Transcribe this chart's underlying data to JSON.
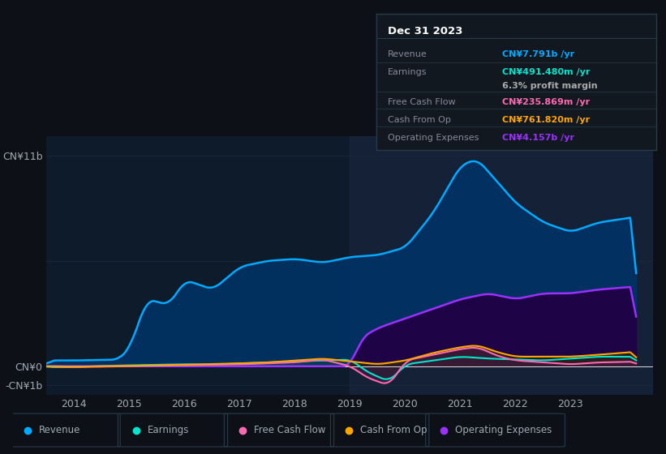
{
  "bg_color": "#0d1117",
  "plot_bg_color": "#0d1b2a",
  "grid_color": "#1e2d3d",
  "text_color": "#a0aab4",
  "title_color": "#ffffff",
  "y_label_top": "CN¥11b",
  "y_label_zero": "CN¥0",
  "y_label_neg": "-CN¥1b",
  "ylim_min": -1500000000.0,
  "ylim_max": 12000000000.0,
  "x_ticks": [
    2014,
    2015,
    2016,
    2017,
    2018,
    2019,
    2020,
    2021,
    2022,
    2023
  ],
  "revenue_color": "#00aaff",
  "earnings_color": "#00e5cc",
  "fcf_color": "#ff69b4",
  "cashfromop_color": "#ffa500",
  "opex_color": "#9b30ff",
  "tooltip_bg": "#111820",
  "tooltip_border": "#2a3a4a",
  "tooltip_title": "Dec 31 2023",
  "tooltip_rows": [
    {
      "label": "Revenue",
      "value": "CN¥7.791b /yr",
      "color": "#00aaff"
    },
    {
      "label": "Earnings",
      "value": "CN¥491.480m /yr",
      "color": "#00e5cc"
    },
    {
      "label": "",
      "value": "6.3% profit margin",
      "color": "#aaaaaa"
    },
    {
      "label": "Free Cash Flow",
      "value": "CN¥235.869m /yr",
      "color": "#ff69b4"
    },
    {
      "label": "Cash From Op",
      "value": "CN¥761.820m /yr",
      "color": "#ffa500"
    },
    {
      "label": "Operating Expenses",
      "value": "CN¥4.157b /yr",
      "color": "#9b30ff"
    }
  ],
  "legend_items": [
    {
      "label": "Revenue",
      "color": "#00aaff"
    },
    {
      "label": "Earnings",
      "color": "#00e5cc"
    },
    {
      "label": "Free Cash Flow",
      "color": "#ff69b4"
    },
    {
      "label": "Cash From Op",
      "color": "#ffa500"
    },
    {
      "label": "Operating Expenses",
      "color": "#9b30ff"
    }
  ]
}
